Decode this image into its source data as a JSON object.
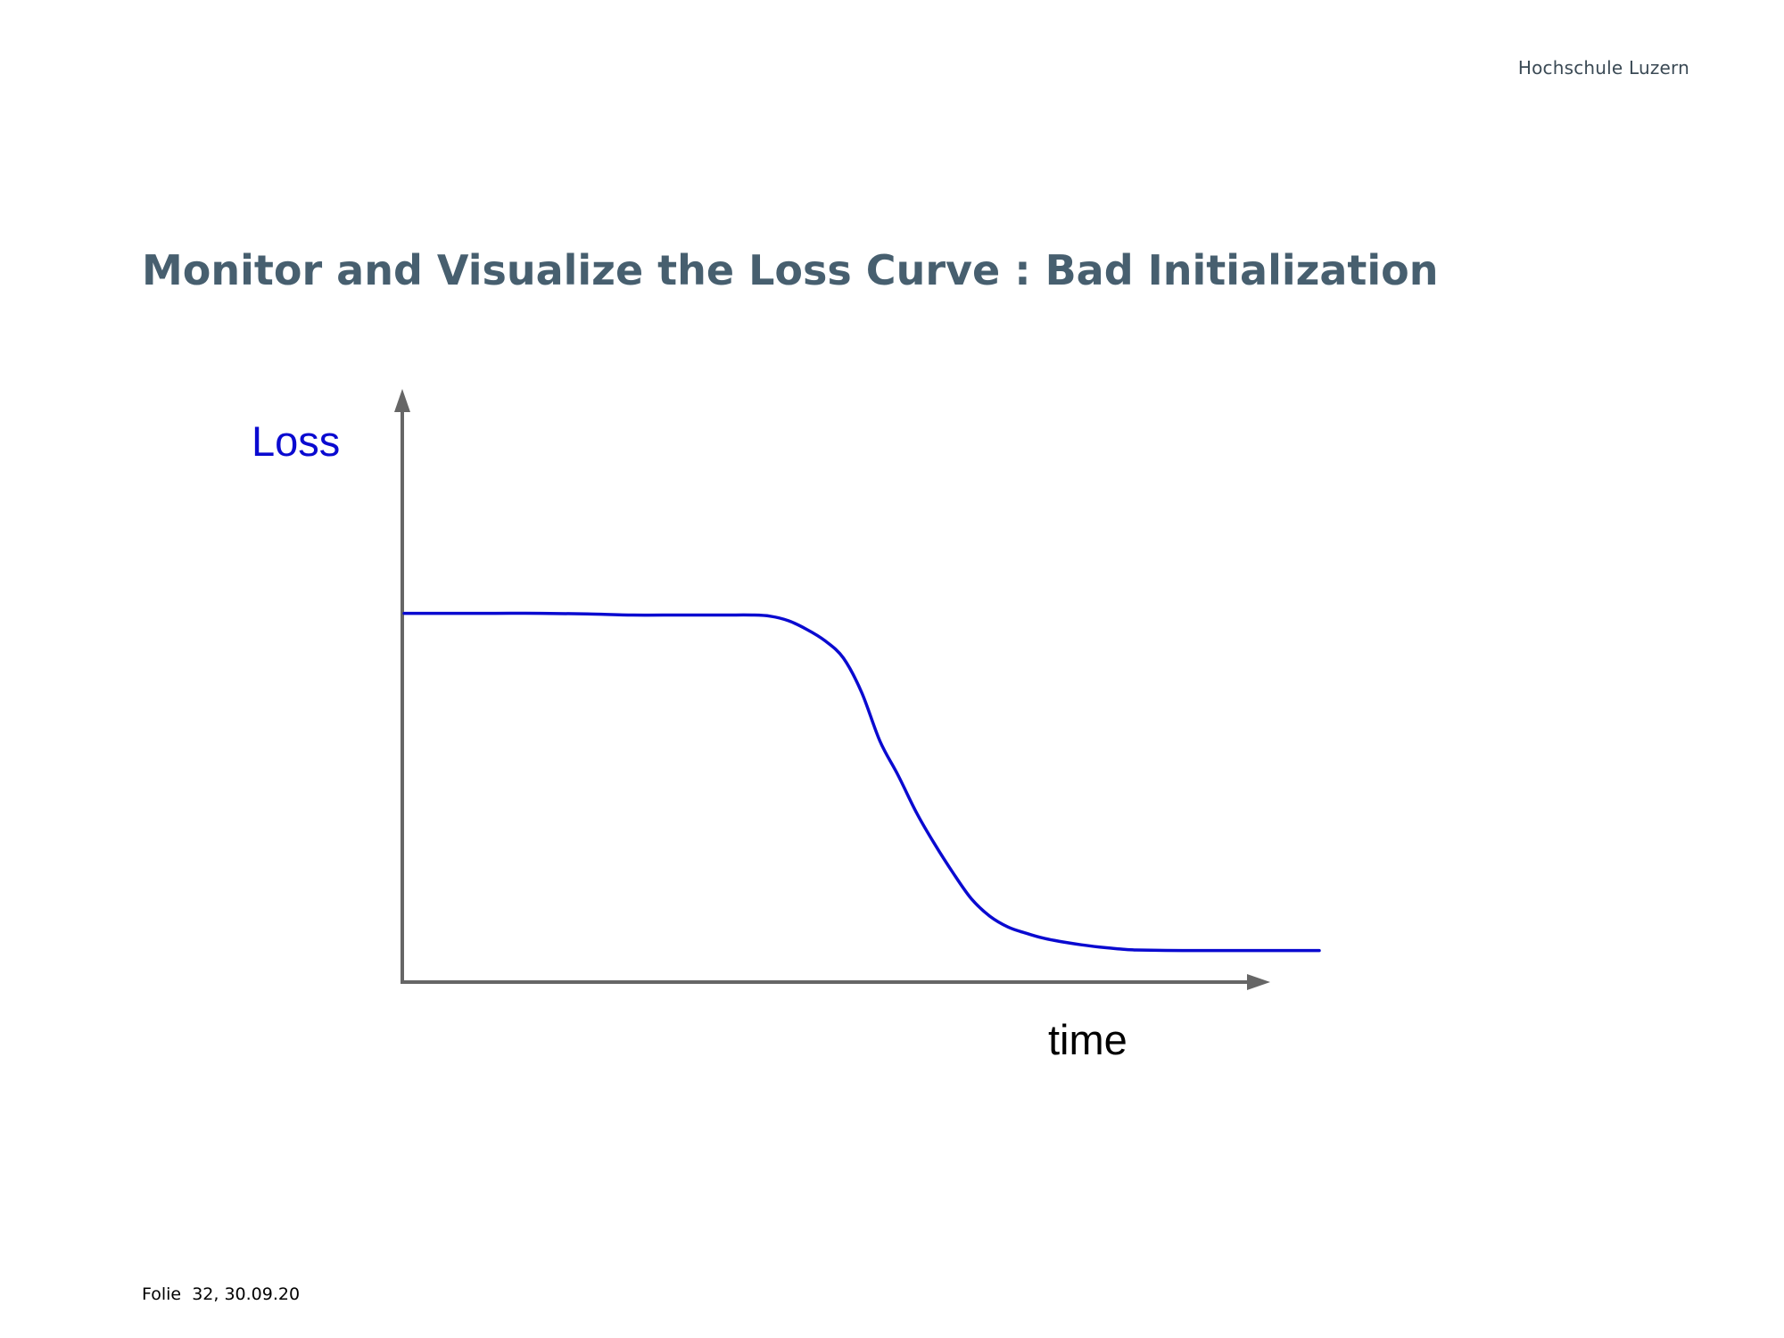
{
  "header": {
    "brand": "Hochschule Luzern"
  },
  "slide": {
    "title": "Monitor and Visualize the Loss Curve : Bad Initialization"
  },
  "footer": {
    "slide_info": "Folie  32, 30.09.20"
  },
  "colors": {
    "title": "#475f6f",
    "axis": "#666666",
    "curve": "#0a0ad0",
    "ylabel": "#0a0ad0",
    "xlabel": "#000000"
  },
  "chart_data": {
    "type": "line",
    "title": "",
    "xlabel": "time",
    "ylabel": "Loss",
    "xlim": [
      0,
      100
    ],
    "ylim": [
      0,
      100
    ],
    "grid": false,
    "legend": "none",
    "tick_labels": false,
    "series": [
      {
        "x": [
          0,
          5,
          10,
          15,
          20,
          25,
          30,
          35,
          38,
          40,
          42,
          44,
          46,
          48,
          50,
          52,
          54,
          56,
          58,
          60,
          62,
          64,
          66,
          68,
          70,
          72,
          74,
          76,
          78,
          80,
          85,
          90,
          95,
          100
        ],
        "y": [
          64.3,
          64.3,
          64.3,
          64.3,
          64.2,
          64.0,
          64.0,
          64.0,
          64.0,
          63.8,
          63.0,
          61.5,
          59.5,
          56.5,
          50.5,
          42.0,
          36.0,
          29.5,
          24.0,
          19.0,
          14.5,
          11.5,
          9.6,
          8.5,
          7.6,
          7.0,
          6.5,
          6.1,
          5.8,
          5.6,
          5.5,
          5.5,
          5.5,
          5.5
        ]
      }
    ]
  }
}
